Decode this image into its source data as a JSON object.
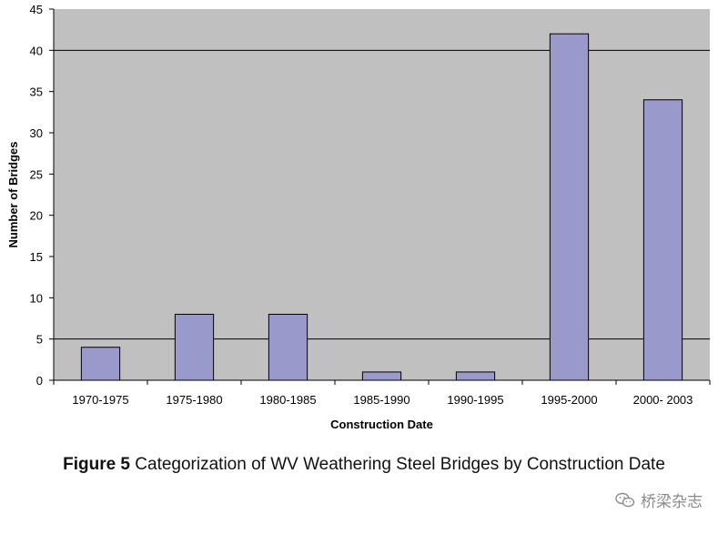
{
  "chart_data": {
    "type": "bar",
    "title": "",
    "xlabel": "Construction Date",
    "ylabel": "Number of Bridges",
    "categories": [
      "1970-1975",
      "1975-1980",
      "1980-1985",
      "1985-1990",
      "1990-1995",
      "1995-2000",
      "2000- 2003"
    ],
    "series": [
      {
        "name": "Number of Bridges",
        "values": [
          4,
          8,
          8,
          1,
          1,
          42,
          34
        ]
      }
    ],
    "ylim": [
      0,
      45
    ],
    "yticks": [
      0,
      5,
      10,
      15,
      20,
      25,
      30,
      35,
      40,
      45
    ],
    "gridlines": [
      5,
      40
    ],
    "legend": "none",
    "colors": {
      "bar": "#9999cc",
      "plot_background": "#c0c0c0",
      "edge": "#000000"
    }
  },
  "caption": {
    "label": "Figure 5",
    "text": " Categorization of WV Weathering Steel Bridges by Construction Date"
  },
  "watermark": {
    "text": "桥梁杂志",
    "icon": "wechat-icon"
  }
}
